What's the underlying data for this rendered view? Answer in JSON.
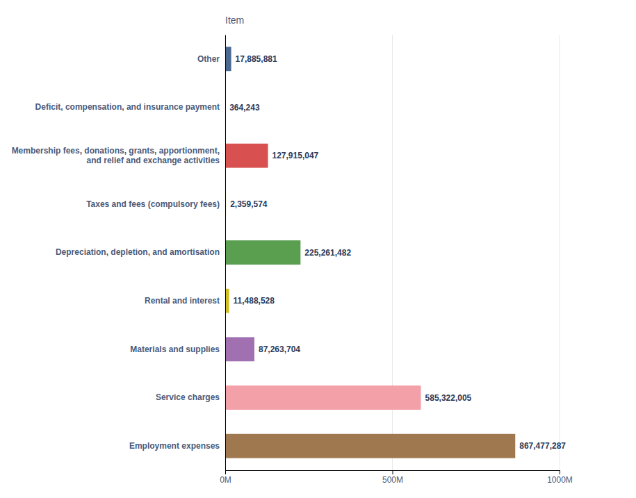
{
  "chart_data": {
    "type": "bar",
    "orientation": "horizontal",
    "title": "Item",
    "categories": [
      "Employment expenses",
      "Service charges",
      "Materials and supplies",
      "Rental and interest",
      "Depreciation, depletion, and amortisation",
      "Taxes and fees (compulsory fees)",
      "Membership fees, donations, grants, apportionment,\nand relief and exchange activities",
      "Deficit, compensation, and insurance payment",
      "Other"
    ],
    "values": [
      867477287,
      585322005,
      87263704,
      11488528,
      225261482,
      2359574,
      127915047,
      364243,
      17885881
    ],
    "value_labels": [
      "867,477,287",
      "585,322,005",
      "87,263,704",
      "11,488,528",
      "225,261,482",
      "2,359,574",
      "127,915,047",
      "364,243",
      "17,885,881"
    ],
    "colors": [
      "#a07850",
      "#f4a0a8",
      "#a070b0",
      "#cfc020",
      "#5a9e50",
      "#cfc020",
      "#d95050",
      "#cfc020",
      "#4a6890"
    ],
    "xlim": [
      0,
      1000000000
    ],
    "xticks": [
      {
        "value": 0,
        "label": "0M"
      },
      {
        "value": 500000000,
        "label": "500M"
      },
      {
        "value": 1000000000,
        "label": "1000M"
      }
    ],
    "grid": true
  }
}
